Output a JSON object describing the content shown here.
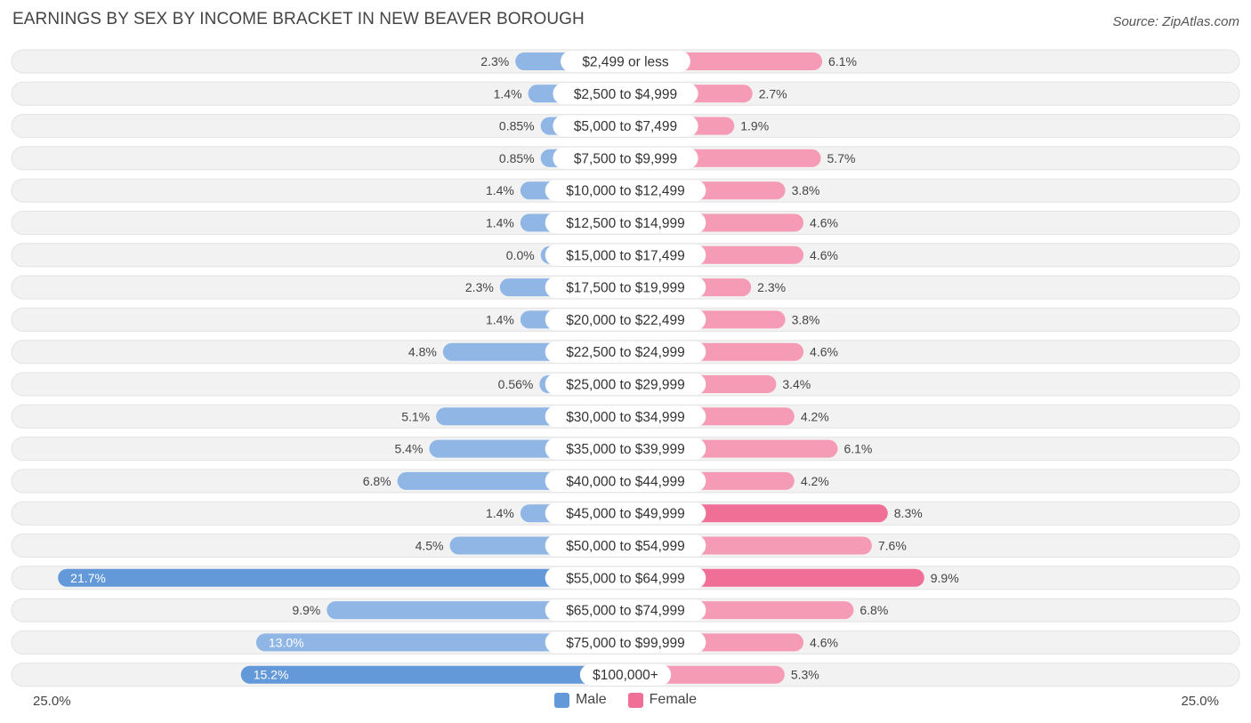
{
  "title": "EARNINGS BY SEX BY INCOME BRACKET IN NEW BEAVER BOROUGH",
  "source": "Source: ZipAtlas.com",
  "colors": {
    "male": "#8fb6e4",
    "male_strong": "#6499d9",
    "female": "#f59bb5",
    "female_strong": "#ef6f97",
    "track": "#f2f2f2"
  },
  "legend": {
    "male": "Male",
    "female": "Female"
  },
  "axis": {
    "left_label": "25.0%",
    "right_label": "25.0%"
  },
  "chart_data": {
    "type": "bar",
    "orientation": "horizontal-diverging",
    "title": "EARNINGS BY SEX BY INCOME BRACKET IN NEW BEAVER BOROUGH",
    "xlim": [
      -25,
      25
    ],
    "categories": [
      "$2,499 or less",
      "$2,500 to $4,999",
      "$5,000 to $7,499",
      "$7,500 to $9,999",
      "$10,000 to $12,499",
      "$12,500 to $14,999",
      "$15,000 to $17,499",
      "$17,500 to $19,999",
      "$20,000 to $22,499",
      "$22,500 to $24,999",
      "$25,000 to $29,999",
      "$30,000 to $34,999",
      "$35,000 to $39,999",
      "$40,000 to $44,999",
      "$45,000 to $49,999",
      "$50,000 to $54,999",
      "$55,000 to $64,999",
      "$65,000 to $74,999",
      "$75,000 to $99,999",
      "$100,000+"
    ],
    "series": [
      {
        "name": "Male",
        "values": [
          2.3,
          1.4,
          0.85,
          0.85,
          1.4,
          1.4,
          0.0,
          2.3,
          1.4,
          4.8,
          0.56,
          5.1,
          5.4,
          6.8,
          1.4,
          4.5,
          21.7,
          9.9,
          13.0,
          15.2
        ],
        "labels": [
          "2.3%",
          "1.4%",
          "0.85%",
          "0.85%",
          "1.4%",
          "1.4%",
          "0.0%",
          "2.3%",
          "1.4%",
          "4.8%",
          "0.56%",
          "5.1%",
          "5.4%",
          "6.8%",
          "1.4%",
          "4.5%",
          "21.7%",
          "9.9%",
          "13.0%",
          "15.2%"
        ]
      },
      {
        "name": "Female",
        "values": [
          6.1,
          2.7,
          1.9,
          5.7,
          3.8,
          4.6,
          4.6,
          2.3,
          3.8,
          4.6,
          3.4,
          4.2,
          6.1,
          4.2,
          8.3,
          7.6,
          9.9,
          6.8,
          4.6,
          5.3
        ],
        "labels": [
          "6.1%",
          "2.7%",
          "1.9%",
          "5.7%",
          "3.8%",
          "4.6%",
          "4.6%",
          "2.3%",
          "3.8%",
          "4.6%",
          "3.4%",
          "4.2%",
          "6.1%",
          "4.2%",
          "8.3%",
          "7.6%",
          "9.9%",
          "6.8%",
          "4.6%",
          "5.3%"
        ]
      }
    ]
  }
}
